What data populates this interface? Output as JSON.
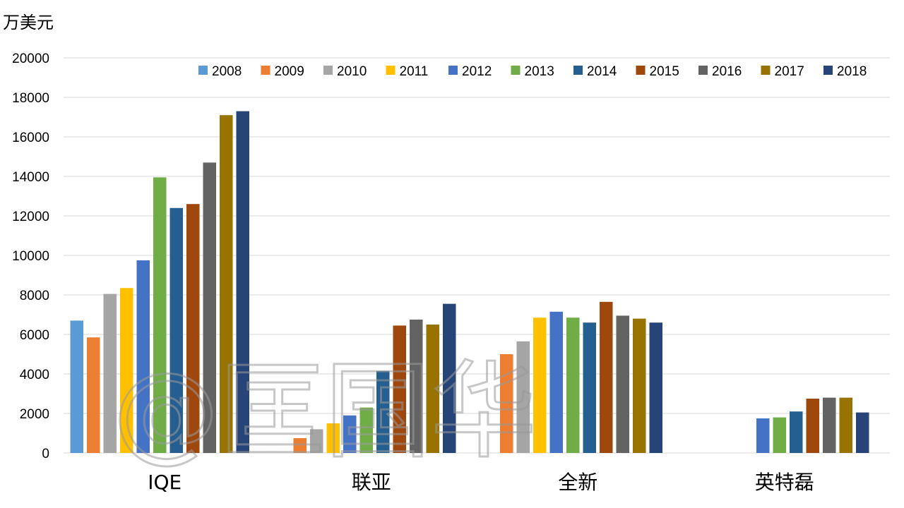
{
  "chart_data": {
    "type": "bar",
    "unit": "万美元",
    "ylim": [
      0,
      20000
    ],
    "y_ticks": [
      0,
      2000,
      4000,
      6000,
      8000,
      10000,
      12000,
      14000,
      16000,
      18000,
      20000
    ],
    "grid": true,
    "legend_position": "top-right",
    "categories": [
      "IQE",
      "联亚",
      "全新",
      "英特磊"
    ],
    "series": [
      {
        "name": "2008",
        "color": "#5B9BD5",
        "values": [
          6700,
          null,
          null,
          null
        ]
      },
      {
        "name": "2009",
        "color": "#ED7D31",
        "values": [
          5850,
          750,
          5000,
          null
        ]
      },
      {
        "name": "2010",
        "color": "#A5A5A5",
        "values": [
          8050,
          1200,
          5650,
          null
        ]
      },
      {
        "name": "2011",
        "color": "#FFC000",
        "values": [
          8350,
          1500,
          6850,
          null
        ]
      },
      {
        "name": "2012",
        "color": "#4472C4",
        "values": [
          9750,
          1900,
          7150,
          1750
        ]
      },
      {
        "name": "2013",
        "color": "#70AD47",
        "values": [
          13950,
          2300,
          6850,
          1800
        ]
      },
      {
        "name": "2014",
        "color": "#255E91",
        "values": [
          12400,
          4150,
          6600,
          2100
        ]
      },
      {
        "name": "2015",
        "color": "#9E480E",
        "values": [
          12600,
          6450,
          7650,
          2750
        ]
      },
      {
        "name": "2016",
        "color": "#636363",
        "values": [
          14700,
          6750,
          6950,
          2800
        ]
      },
      {
        "name": "2017",
        "color": "#997300",
        "values": [
          17100,
          6500,
          6800,
          2800
        ]
      },
      {
        "name": "2018",
        "color": "#264478",
        "values": [
          17300,
          7550,
          6600,
          2050
        ]
      }
    ]
  },
  "watermark": "@匡国华"
}
